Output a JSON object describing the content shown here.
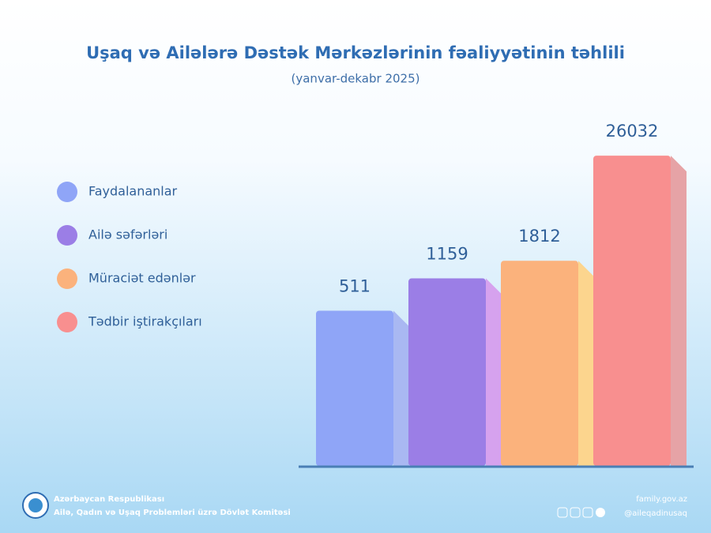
{
  "chart_data": {
    "type": "bar",
    "title": "Uşaq və Ailələrə Dəstək Mərkəzlərinin fəaliyyətinin təhlili",
    "subtitle": "(yanvar-dekabr 2025)",
    "categories": [
      "Faydalananlar",
      "Ailə səfərləri",
      "Müraciət edənlər",
      "Tədbir iştirakçıları"
    ],
    "values": [
      511,
      1159,
      1812,
      26032
    ],
    "colors": [
      "#8fa5f7",
      "#9b7ee6",
      "#fbb27c",
      "#f88f8f"
    ],
    "side_colors": [
      "#a9b8f2",
      "#d6a2ee",
      "#fcd58e",
      "#e6a3a6"
    ],
    "log_scale": true,
    "ylim": [
      10,
      30000
    ]
  },
  "footer": {
    "org_line1": "Azərbaycan Respublikası",
    "org_line2": "Ailə, Qadın və Uşaq Problemləri üzrə Dövlət Komitəsi",
    "website": "family.gov.az",
    "handle": "@aileqadinusaq"
  }
}
